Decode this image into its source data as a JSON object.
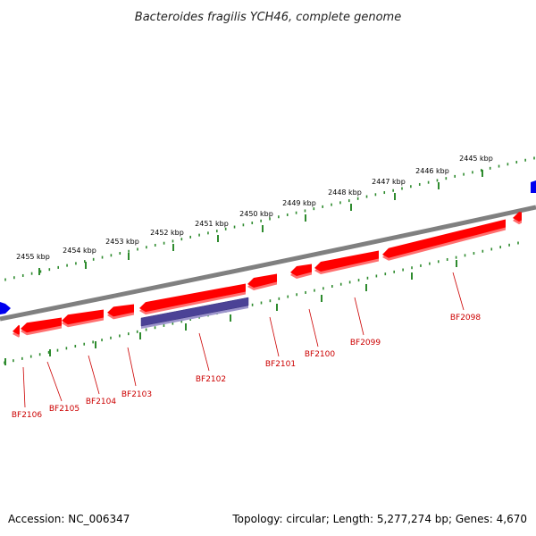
{
  "title": "Bacteroides fragilis YCH46, complete genome",
  "footer": {
    "accession": "Accession: NC_006347",
    "summary": "Topology: circular; Length: 5,277,274 bp; Genes: 4,670"
  },
  "scale_ticks": [
    "2455 kbp",
    "2454 kbp",
    "2453 kbp",
    "2452 kbp",
    "2451 kbp",
    "2450 kbp",
    "2449 kbp",
    "2448 kbp",
    "2447 kbp",
    "2446 kbp",
    "2445 kbp"
  ],
  "genes": [
    {
      "name": "BF2106",
      "strand": "reverse",
      "color": "#e41a1c"
    },
    {
      "name": "BF2105",
      "strand": "reverse",
      "color": "#e41a1c"
    },
    {
      "name": "BF2104",
      "strand": "reverse",
      "color": "#e41a1c"
    },
    {
      "name": "BF2103",
      "strand": "reverse",
      "color": "#e41a1c"
    },
    {
      "name": "BF2102",
      "strand": "reverse",
      "color": "#e41a1c"
    },
    {
      "name": "BF2101",
      "strand": "reverse",
      "color": "#e41a1c"
    },
    {
      "name": "BF2100",
      "strand": "reverse",
      "color": "#e41a1c"
    },
    {
      "name": "BF2099",
      "strand": "reverse",
      "color": "#e41a1c"
    },
    {
      "name": "BF2098",
      "strand": "reverse",
      "color": "#e41a1c"
    }
  ],
  "colors": {
    "backbone": "#808080",
    "gene_fill": "#ff0000",
    "gene_shadow": "#ff7070",
    "feature_fill": "#4b4296",
    "feature_shadow": "#9d95cc",
    "tick": "#2e8b2e",
    "other_strand_gene": "#0000ee"
  }
}
